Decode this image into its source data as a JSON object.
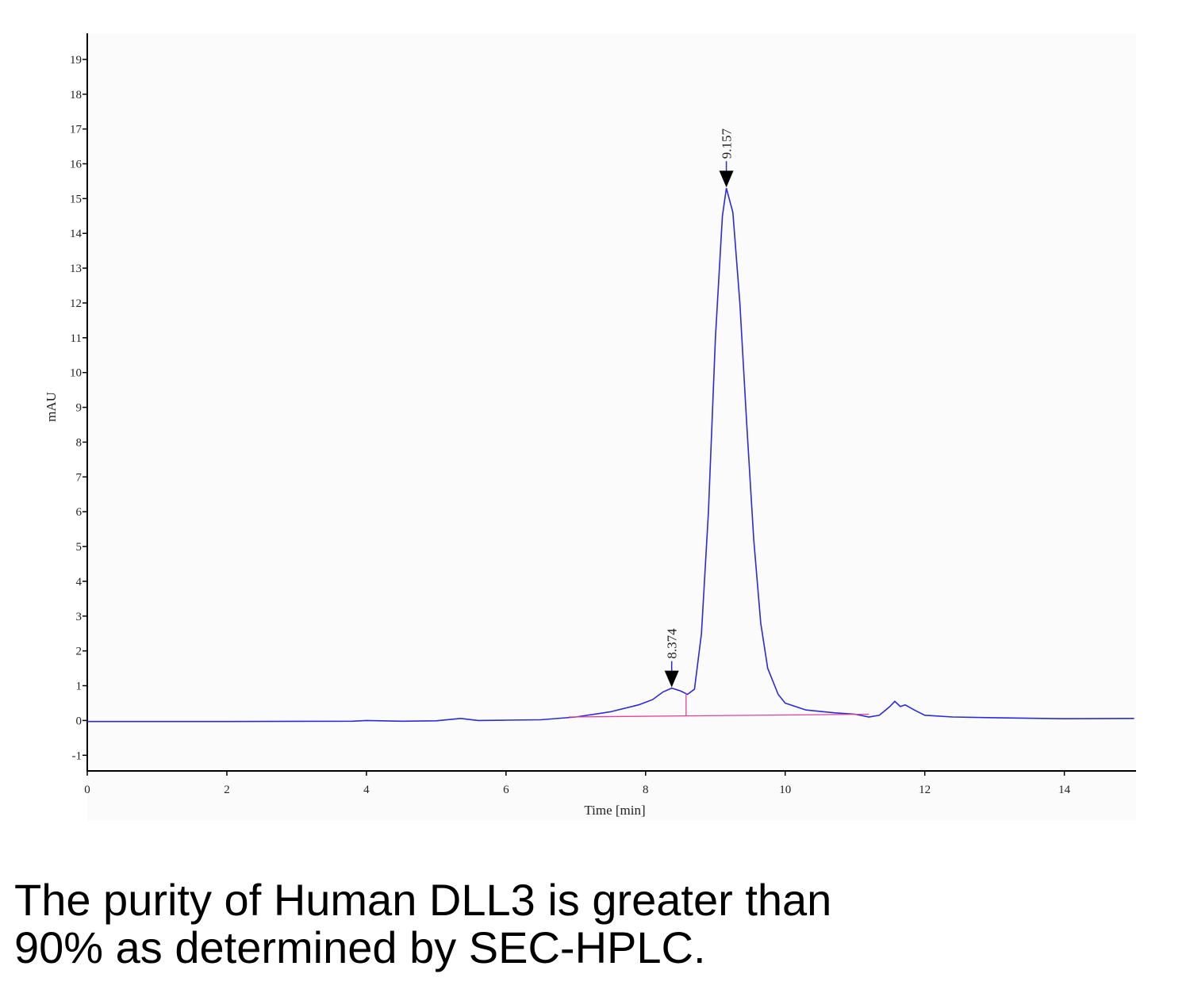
{
  "chart_data": {
    "type": "line",
    "x_label": "Time [min]",
    "y_label": "mAU",
    "xlim": [
      0,
      15.05
    ],
    "ylim": [
      -1.45,
      19.75
    ],
    "xticks": [
      0,
      2,
      4,
      6,
      8,
      10,
      12,
      14
    ],
    "yticks": [
      -1,
      0,
      1,
      2,
      3,
      4,
      5,
      6,
      7,
      8,
      9,
      10,
      11,
      12,
      13,
      14,
      15,
      16,
      17,
      18,
      19
    ],
    "series": [
      {
        "color": "#2a2ad8",
        "x": [
          0,
          2,
          3.8,
          4,
          4.5,
          5,
          5.35,
          5.6,
          6,
          6.5,
          7,
          7.5,
          7.9,
          8.1,
          8.25,
          8.374,
          8.5,
          8.6,
          8.7,
          8.8,
          8.9,
          9.0,
          9.1,
          9.157,
          9.25,
          9.35,
          9.45,
          9.55,
          9.65,
          9.75,
          9.9,
          10.0,
          10.3,
          10.7,
          11.0,
          11.2,
          11.35,
          11.5,
          11.57,
          11.65,
          11.72,
          11.85,
          12.0,
          12.4,
          13,
          14,
          15
        ],
        "values": [
          -0.03,
          -0.03,
          -0.02,
          0.0,
          -0.02,
          -0.01,
          0.06,
          0.0,
          0.01,
          0.02,
          0.1,
          0.25,
          0.45,
          0.6,
          0.82,
          0.93,
          0.85,
          0.75,
          0.9,
          2.5,
          6,
          11,
          14.5,
          15.3,
          14.6,
          12,
          8.5,
          5.2,
          2.8,
          1.5,
          0.75,
          0.5,
          0.3,
          0.22,
          0.18,
          0.1,
          0.15,
          0.4,
          0.55,
          0.4,
          0.45,
          0.3,
          0.15,
          0.1,
          0.08,
          0.05,
          0.06
        ]
      },
      {
        "color": "#e0409a",
        "x": [
          6.9,
          11.2
        ],
        "values": [
          0.1,
          0.18
        ]
      },
      {
        "color": "#e0409a",
        "x": [
          8.58,
          8.58
        ],
        "values": [
          0.14,
          0.78
        ]
      }
    ],
    "annotations": [
      {
        "label": "8.374",
        "x": 8.374,
        "y": 0.93
      },
      {
        "label": "9.157",
        "x": 9.157,
        "y": 15.3
      }
    ]
  },
  "caption": "The purity of Human DLL3 is greater than 90% as determined by SEC-HPLC."
}
